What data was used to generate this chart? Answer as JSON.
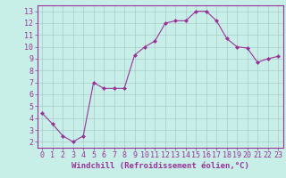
{
  "x": [
    0,
    1,
    2,
    3,
    4,
    5,
    6,
    7,
    8,
    9,
    10,
    11,
    12,
    13,
    14,
    15,
    16,
    17,
    18,
    19,
    20,
    21,
    22,
    23
  ],
  "y": [
    4.4,
    3.5,
    2.5,
    2.0,
    2.5,
    7.0,
    6.5,
    6.5,
    6.5,
    9.3,
    10.0,
    10.5,
    12.0,
    12.2,
    12.2,
    13.0,
    13.0,
    12.2,
    10.7,
    10.0,
    9.9,
    8.7,
    9.0,
    9.2
  ],
  "line_color": "#993399",
  "marker": "D",
  "marker_size": 2.0,
  "bg_color": "#c8eee8",
  "grid_color": "#aacccc",
  "xlabel": "Windchill (Refroidissement éolien,°C)",
  "xlabel_color": "#993399",
  "tick_color": "#993399",
  "axis_color": "#993399",
  "ylim": [
    1.5,
    13.5
  ],
  "xlim": [
    -0.5,
    23.5
  ],
  "yticks": [
    2,
    3,
    4,
    5,
    6,
    7,
    8,
    9,
    10,
    11,
    12,
    13
  ],
  "xticks": [
    0,
    1,
    2,
    3,
    4,
    5,
    6,
    7,
    8,
    9,
    10,
    11,
    12,
    13,
    14,
    15,
    16,
    17,
    18,
    19,
    20,
    21,
    22,
    23
  ],
  "font_size": 6.0,
  "label_font_size": 6.5,
  "linewidth": 0.8
}
